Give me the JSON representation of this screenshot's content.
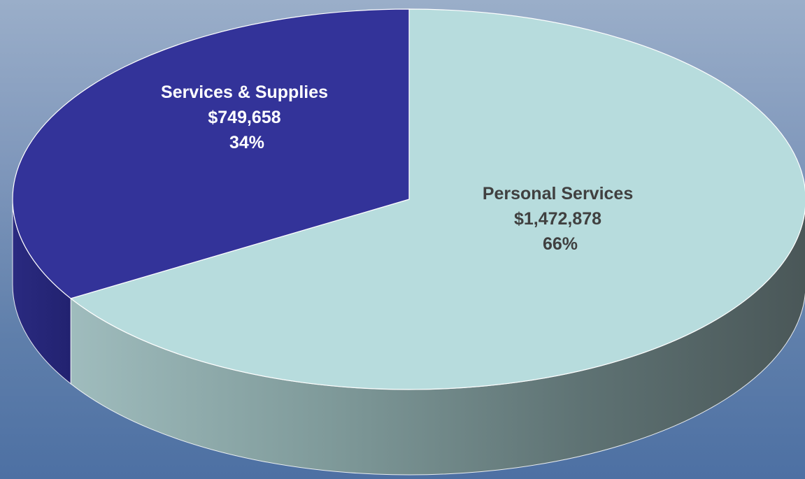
{
  "chart_data": {
    "type": "pie",
    "style": "3d",
    "slices": [
      {
        "name": "Personal Services",
        "value": 1472878,
        "value_label": "$1,472,878",
        "percent": 66,
        "percent_label": "66%",
        "color": "#b7dcdd",
        "label_color": "#404040"
      },
      {
        "name": "Services & Supplies",
        "value": 749658,
        "value_label": "$749,658",
        "percent": 34,
        "percent_label": "34%",
        "color": "#333399",
        "label_color": "#ffffff"
      }
    ],
    "legend": false
  }
}
